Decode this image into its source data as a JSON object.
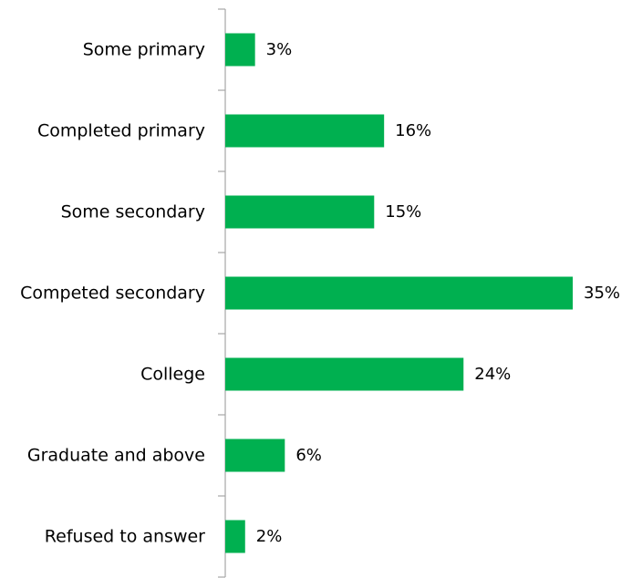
{
  "chart_data": {
    "type": "bar",
    "orientation": "horizontal",
    "categories": [
      "Some primary",
      "Completed primary",
      "Some secondary",
      "Competed secondary",
      "College",
      "Graduate and above",
      "Refused to answer"
    ],
    "values": [
      3,
      16,
      15,
      35,
      24,
      6,
      2
    ],
    "value_labels": [
      "3%",
      "16%",
      "15%",
      "35%",
      "24%",
      "6%",
      "2%"
    ],
    "unit": "%",
    "xlim": [
      0,
      35
    ],
    "title": "",
    "xlabel": "",
    "ylabel": "",
    "grid": false,
    "legend": "none",
    "bar_color": "#00b050"
  }
}
